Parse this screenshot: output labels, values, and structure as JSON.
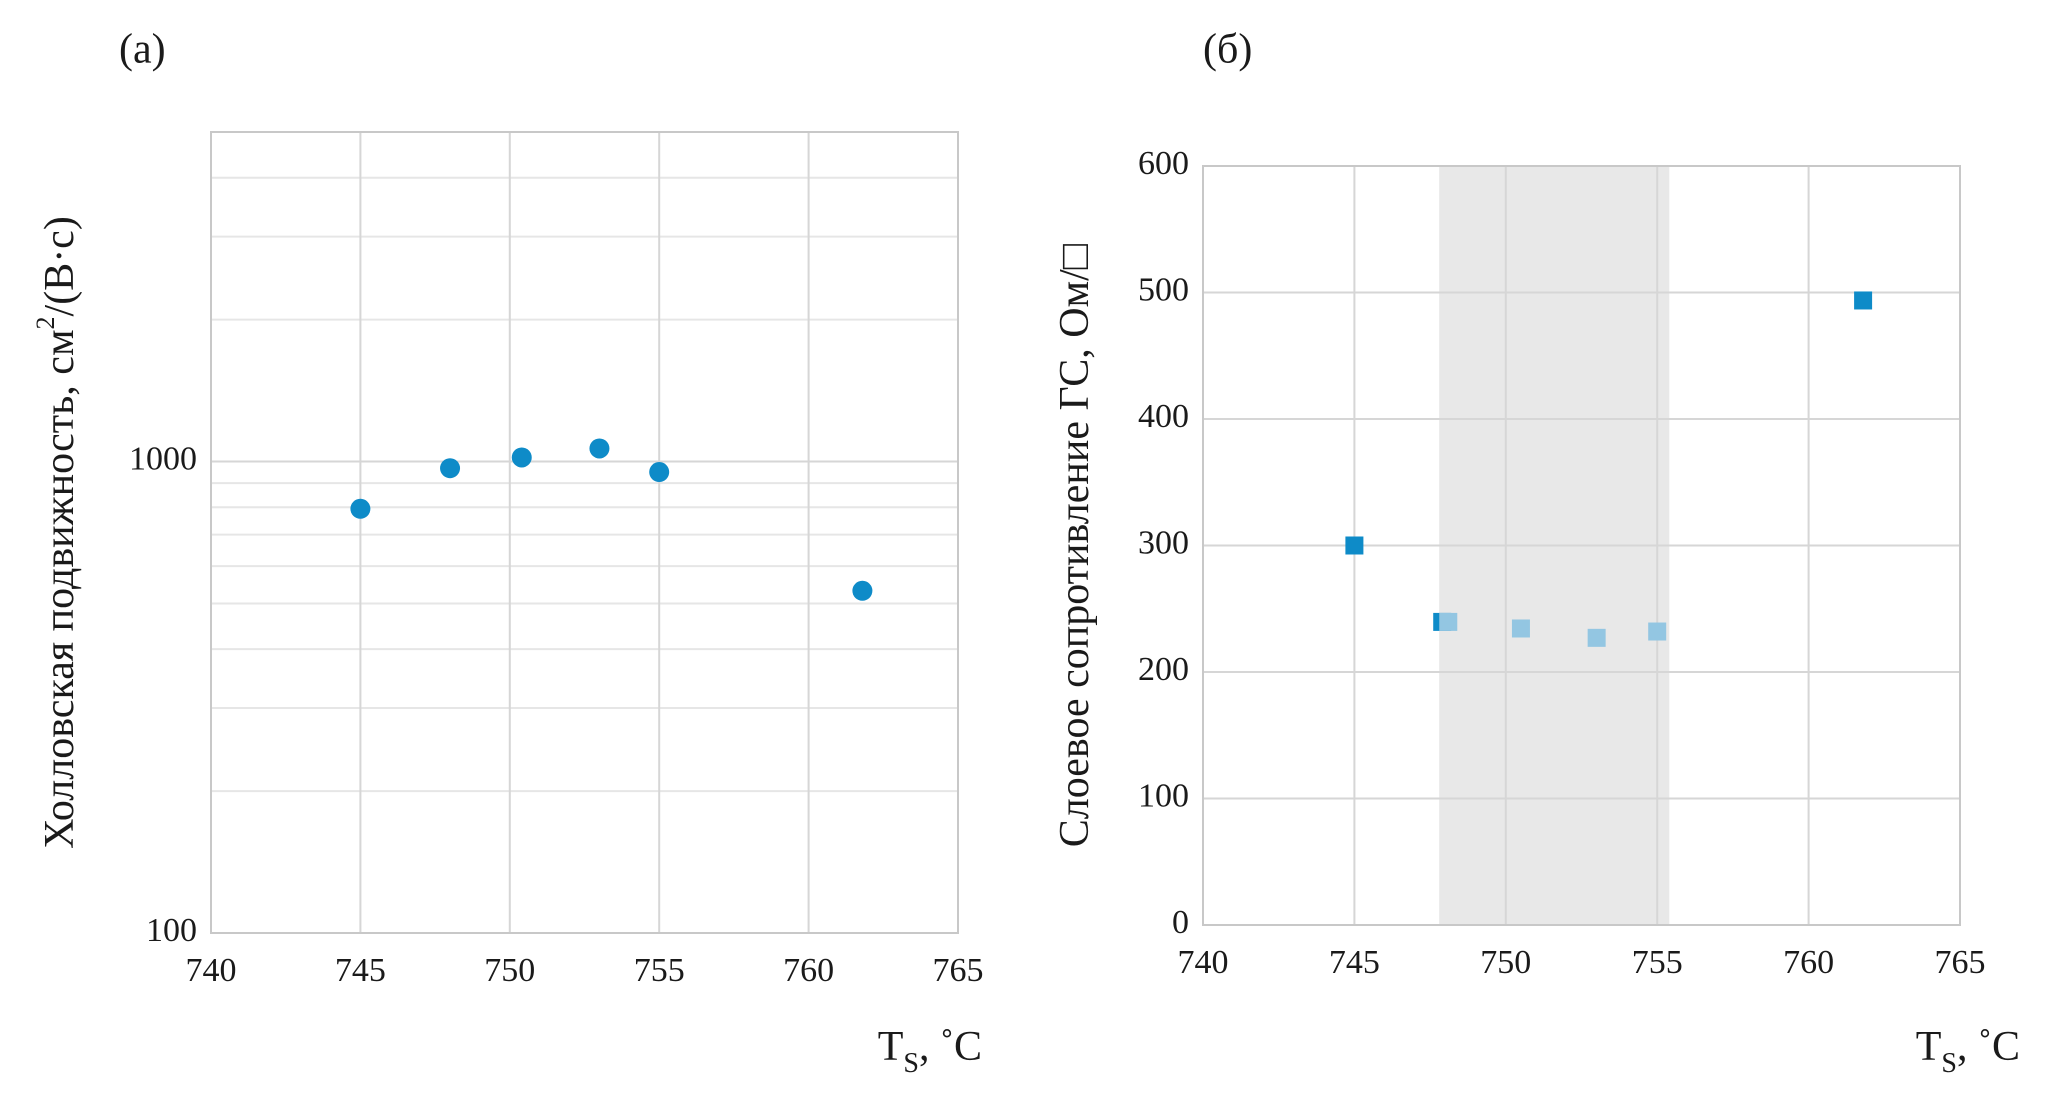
{
  "chart_data": [
    {
      "type": "scatter",
      "label": "(а)",
      "ylabel": "Холловская подвижность, см",
      "ylabel_sup": "2",
      "ylabel_rest": "/(В·с)",
      "xlabel": "T",
      "xlabel_sub": "S",
      "xlabel_rest": ", ˚C",
      "xlim": [
        740,
        765
      ],
      "xticks": [
        740,
        745,
        750,
        755,
        760,
        765
      ],
      "ylim": [
        100,
        5000
      ],
      "yticks": [
        100,
        1000
      ],
      "log_y": true,
      "minor_grid": true,
      "grid": true,
      "series": [
        {
          "color": "#0e8bc8",
          "marker": "circle",
          "x": [
            745,
            748,
            750.4,
            753,
            755,
            761.8
          ],
          "values": [
            794,
            968,
            1020,
            1066,
            950,
            532
          ]
        }
      ]
    },
    {
      "type": "scatter",
      "label": "(б)",
      "ylabel": "Слоевое сопротивление ГС, Ом/□",
      "xlabel": "T",
      "xlabel_sub": "S",
      "xlabel_rest": ", ˚C",
      "xlim": [
        740,
        765
      ],
      "xticks": [
        740,
        745,
        750,
        755,
        760,
        765
      ],
      "ylim": [
        0,
        600
      ],
      "yticks": [
        0,
        100,
        200,
        300,
        400,
        500,
        600
      ],
      "log_y": false,
      "grid": true,
      "shade": [
        747.8,
        755.4
      ],
      "shade_color": "#e8e8e8",
      "series": [
        {
          "color": "#0e8bc8",
          "marker": "square",
          "x": [
            745,
            747.9,
            761.8
          ],
          "values": [
            300,
            239.6,
            493.7
          ]
        },
        {
          "color": "#93c6e2",
          "marker": "square",
          "x": [
            748.1,
            750.5,
            753,
            755
          ],
          "values": [
            239.6,
            234.4,
            227,
            232
          ]
        }
      ]
    }
  ]
}
